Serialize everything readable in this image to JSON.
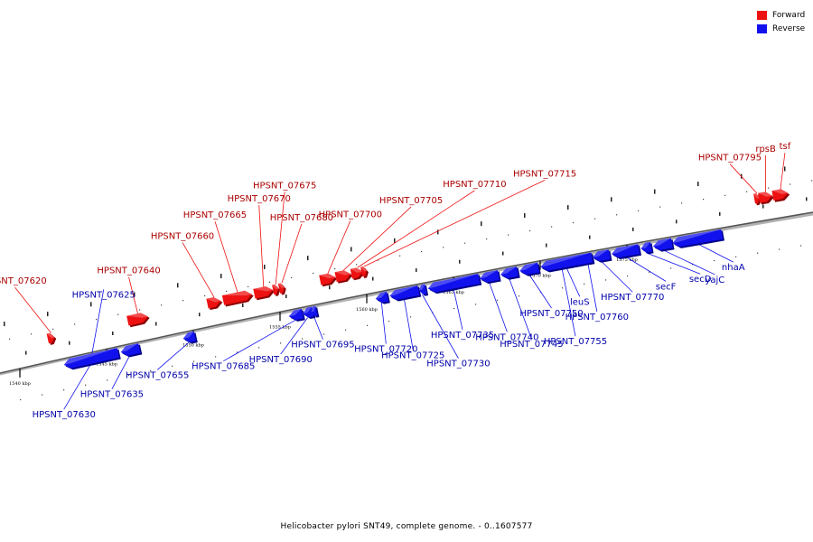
{
  "title": "Helicobacter pylori SNT49, complete genome. - 0..1607577",
  "legend": {
    "forward_label": "Forward",
    "reverse_label": "Reverse",
    "forward_color": "#ee1111",
    "reverse_color": "#1111ee"
  },
  "scale": {
    "ticks": [
      {
        "label": "1540 kbp",
        "kbp": 1540
      },
      {
        "label": "1545 kbp",
        "kbp": 1545
      },
      {
        "label": "1550 kbp",
        "kbp": 1550
      },
      {
        "label": "1555 kbp",
        "kbp": 1555
      },
      {
        "label": "1560 kbp",
        "kbp": 1560
      },
      {
        "label": "1565 kbp",
        "kbp": 1565
      },
      {
        "label": "1570 kbp",
        "kbp": 1570
      },
      {
        "label": "1575 kbp",
        "kbp": 1575
      }
    ]
  },
  "features": [
    {
      "name": "HPSNT_07620",
      "strand": "forward",
      "start": 1541.6,
      "end": 1542.0
    },
    {
      "name": "HPSNT_07625",
      "strand": "reverse",
      "start": 1543.9,
      "end": 1544.2
    },
    {
      "name": "HPSNT_07630",
      "strand": "reverse",
      "start": 1542.5,
      "end": 1545.7
    },
    {
      "name": "HPSNT_07635",
      "strand": "reverse",
      "start": 1545.8,
      "end": 1546.9
    },
    {
      "name": "HPSNT_07640",
      "strand": "forward",
      "start": 1546.2,
      "end": 1547.4
    },
    {
      "name": "HPSNT_07655",
      "strand": "reverse",
      "start": 1549.4,
      "end": 1550.1
    },
    {
      "name": "HPSNT_07660",
      "strand": "forward",
      "start": 1550.8,
      "end": 1551.6
    },
    {
      "name": "HPSNT_07665",
      "strand": "forward",
      "start": 1551.7,
      "end": 1553.4
    },
    {
      "name": "HPSNT_07670",
      "strand": "forward",
      "start": 1553.5,
      "end": 1554.6
    },
    {
      "name": "HPSNT_07675",
      "strand": "forward",
      "start": 1554.6,
      "end": 1554.9
    },
    {
      "name": "HPSNT_07680",
      "strand": "forward",
      "start": 1555.0,
      "end": 1555.2
    },
    {
      "name": "HPSNT_07685",
      "strand": "reverse",
      "start": 1555.5,
      "end": 1556.3
    },
    {
      "name": "HPSNT_07690",
      "strand": "reverse",
      "start": 1556.3,
      "end": 1556.9
    },
    {
      "name": "HPSNT_07695",
      "strand": "reverse",
      "start": 1556.9,
      "end": 1557.0
    },
    {
      "name": "HPSNT_07700",
      "strand": "forward",
      "start": 1557.3,
      "end": 1558.2
    },
    {
      "name": "HPSNT_07705",
      "strand": "forward",
      "start": 1558.2,
      "end": 1559.1
    },
    {
      "name": "HPSNT_07710",
      "strand": "forward",
      "start": 1559.1,
      "end": 1559.8
    },
    {
      "name": "HPSNT_07715",
      "strand": "forward",
      "start": 1559.8,
      "end": 1559.9
    },
    {
      "name": "HPSNT_07720",
      "strand": "reverse",
      "start": 1560.5,
      "end": 1561.2
    },
    {
      "name": "HPSNT_07725",
      "strand": "reverse",
      "start": 1561.3,
      "end": 1563.0
    },
    {
      "name": "HPSNT_07730",
      "strand": "reverse",
      "start": 1563.0,
      "end": 1563.4
    },
    {
      "name": "HPSNT_07735",
      "strand": "reverse",
      "start": 1563.5,
      "end": 1566.5
    },
    {
      "name": "HPSNT_07740",
      "strand": "reverse",
      "start": 1566.5,
      "end": 1567.6
    },
    {
      "name": "HPSNT_07745",
      "strand": "reverse",
      "start": 1567.7,
      "end": 1568.7
    },
    {
      "name": "HPSNT_07750",
      "strand": "reverse",
      "start": 1568.8,
      "end": 1569.9
    },
    {
      "name": "HPSNT_07755",
      "strand": "reverse",
      "start": 1570.0,
      "end": 1572.5
    },
    {
      "name": "HPSNT_07760",
      "strand": "reverse",
      "start": 1572.5,
      "end": 1573.0
    },
    {
      "name": "leuS",
      "strand": "reverse",
      "start": 1570.0,
      "end": 1573.0
    },
    {
      "name": "HPSNT_07770",
      "strand": "reverse",
      "start": 1573.0,
      "end": 1574.0
    },
    {
      "name": "secF",
      "strand": "reverse",
      "start": 1574.1,
      "end": 1575.7
    },
    {
      "name": "secD",
      "strand": "reverse",
      "start": 1575.8,
      "end": 1576.4
    },
    {
      "name": "yajC",
      "strand": "reverse",
      "start": 1576.5,
      "end": 1577.6
    },
    {
      "name": "nhaA",
      "strand": "reverse",
      "start": 1577.6,
      "end": 1580.5
    },
    {
      "name": "HPSNT_07795",
      "strand": "forward",
      "start": 1582.4,
      "end": 1582.6
    },
    {
      "name": "rpsB",
      "strand": "forward",
      "start": 1582.6,
      "end": 1583.4
    },
    {
      "name": "tsf",
      "strand": "forward",
      "start": 1583.4,
      "end": 1584.3
    }
  ]
}
